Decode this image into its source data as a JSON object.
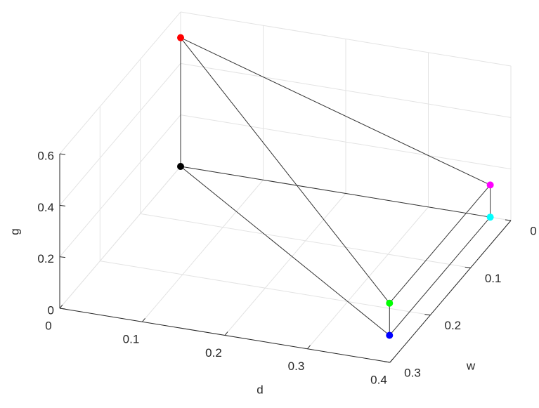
{
  "chart_data": {
    "type": "scatter3d",
    "xlabel": "d",
    "ylabel": "w",
    "zlabel": "g",
    "x": [
      0,
      0,
      0.375,
      0.375,
      0.375,
      0.375
    ],
    "y": [
      0,
      0,
      0,
      0,
      0.25,
      0.25
    ],
    "z": [
      0,
      0.5,
      0,
      0.125,
      0,
      0.125
    ],
    "colors": [
      "#000000",
      "#ff0000",
      "#00ffff",
      "#ff00ff",
      "#0000ff",
      "#00ff00"
    ],
    "edges": [
      [
        0,
        1
      ],
      [
        1,
        3
      ],
      [
        1,
        5
      ],
      [
        0,
        2
      ],
      [
        0,
        4
      ],
      [
        2,
        3
      ],
      [
        3,
        5
      ],
      [
        2,
        4
      ],
      [
        4,
        5
      ]
    ],
    "edge_color": "#333333",
    "xlim": [
      0,
      0.4
    ],
    "xticks": [
      0,
      0.1,
      0.2,
      0.3,
      0.4
    ],
    "ylim": [
      0,
      0.3
    ],
    "yticks": [
      0,
      0.1,
      0.2,
      0.3
    ],
    "zlim": [
      0,
      0.6
    ],
    "zticks": [
      0,
      0.2,
      0.4,
      0.6
    ],
    "grid": true
  }
}
